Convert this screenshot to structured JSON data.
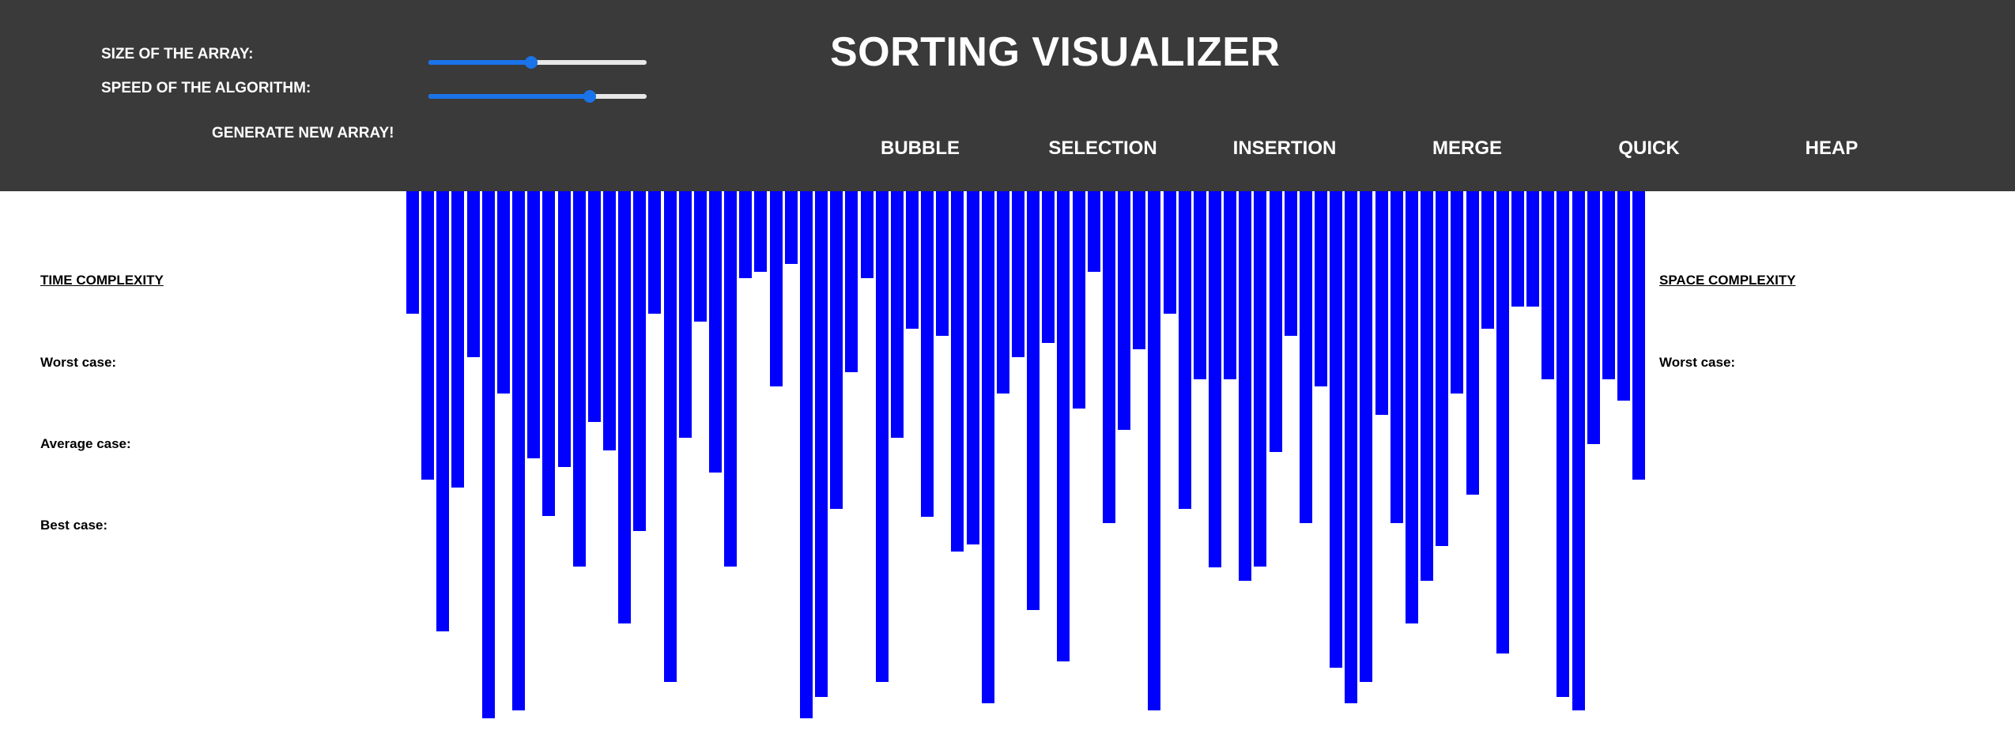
{
  "header": {
    "title": "SORTING VISUALIZER",
    "size_label": "SIZE OF THE ARRAY:",
    "speed_label": "SPEED OF THE ALGORITHM:",
    "size_value": 0.47,
    "speed_value": 0.74,
    "generate_label": "GENERATE NEW ARRAY!",
    "algorithms": [
      "BUBBLE",
      "SELECTION",
      "INSERTION",
      "MERGE",
      "QUICK",
      "HEAP"
    ]
  },
  "complexity": {
    "time_heading": "TIME COMPLEXITY",
    "worst_label": "Worst case:",
    "average_label": "Average case:",
    "best_label": "Best case:",
    "space_heading": "SPACE COMPLEXITY",
    "space_worst_label": "Worst case:"
  },
  "colors": {
    "header_bg": "#3a3a3a",
    "bar": "#0000ff",
    "slider_accent": "#1a73e8"
  },
  "array_values": [
    155,
    365,
    557,
    375,
    210,
    667,
    256,
    657,
    338,
    411,
    349,
    475,
    292,
    328,
    547,
    430,
    155,
    621,
    312,
    165,
    356,
    475,
    110,
    102,
    247,
    92,
    667,
    640,
    402,
    229,
    110,
    621,
    312,
    174,
    412,
    183,
    456,
    447,
    648,
    256,
    210,
    530,
    192,
    595,
    275,
    102,
    420,
    302,
    200,
    657,
    155,
    402,
    238,
    476,
    238,
    493,
    475,
    330,
    183,
    420,
    247,
    603,
    648,
    621,
    283,
    420,
    547,
    493,
    449,
    256,
    384,
    174,
    585,
    146,
    146,
    238,
    640,
    657,
    320,
    238,
    265,
    365
  ]
}
